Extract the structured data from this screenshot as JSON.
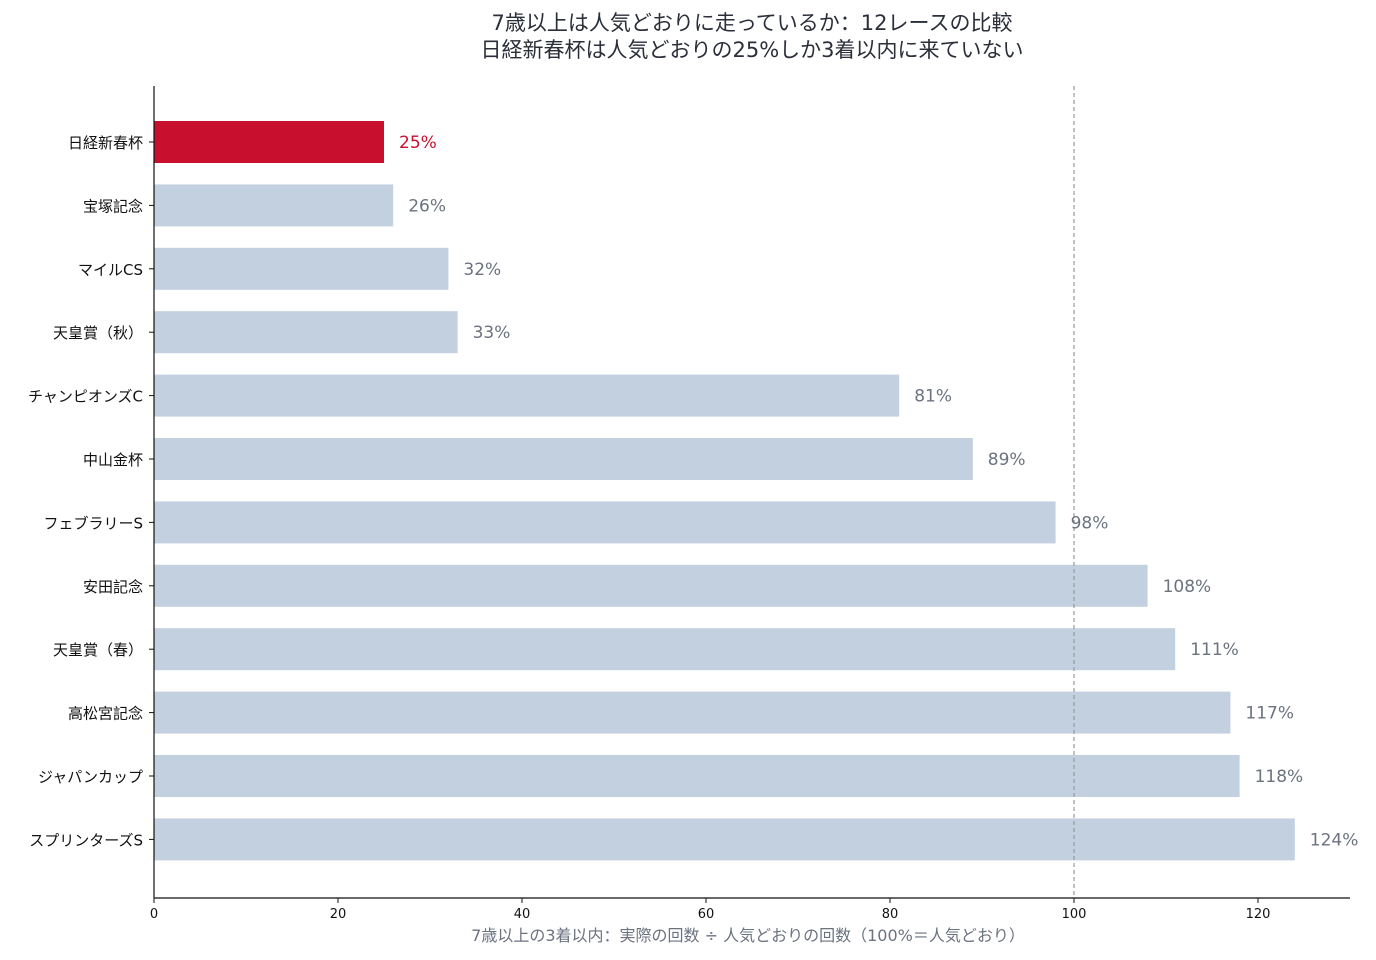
{
  "title_line1": "7歳以上は人気どおりに走っているか：12レースの比較",
  "title_line2": "日経新春杯は人気どおりの25%しか3着以内に来ていない",
  "colors": {
    "highlight": "#c8102e",
    "bar": "#c3d0e0",
    "label": "#6b7280",
    "reference_line": "#999999",
    "axis": "#111111"
  },
  "chart_data": {
    "type": "bar",
    "orientation": "horizontal",
    "title": "7歳以上は人気どおりに走っているか：12レースの比較 日経新春杯は人気どおりの25%しか3着以内に来ていない",
    "categories": [
      "日経新春杯",
      "宝塚記念",
      "マイルCS",
      "天皇賞（秋）",
      "チャンピオンズC",
      "中山金杯",
      "フェブラリーS",
      "安田記念",
      "天皇賞（春）",
      "高松宮記念",
      "ジャパンカップ",
      "スプリンターズS"
    ],
    "values": [
      25,
      26,
      32,
      33,
      81,
      89,
      98,
      108,
      111,
      117,
      118,
      124
    ],
    "value_labels": [
      "25%",
      "26%",
      "32%",
      "33%",
      "81%",
      "89%",
      "98%",
      "108%",
      "111%",
      "117%",
      "118%",
      "124%"
    ],
    "highlight_category": "日経新春杯",
    "xlabel": "7歳以上の3着以内：実際の回数 ÷ 人気どおりの回数（100%＝人気どおり）",
    "xlim": [
      0,
      130
    ],
    "xticks": [
      0,
      20,
      40,
      60,
      80,
      100,
      120
    ],
    "reference_line": 100,
    "grid": false
  }
}
